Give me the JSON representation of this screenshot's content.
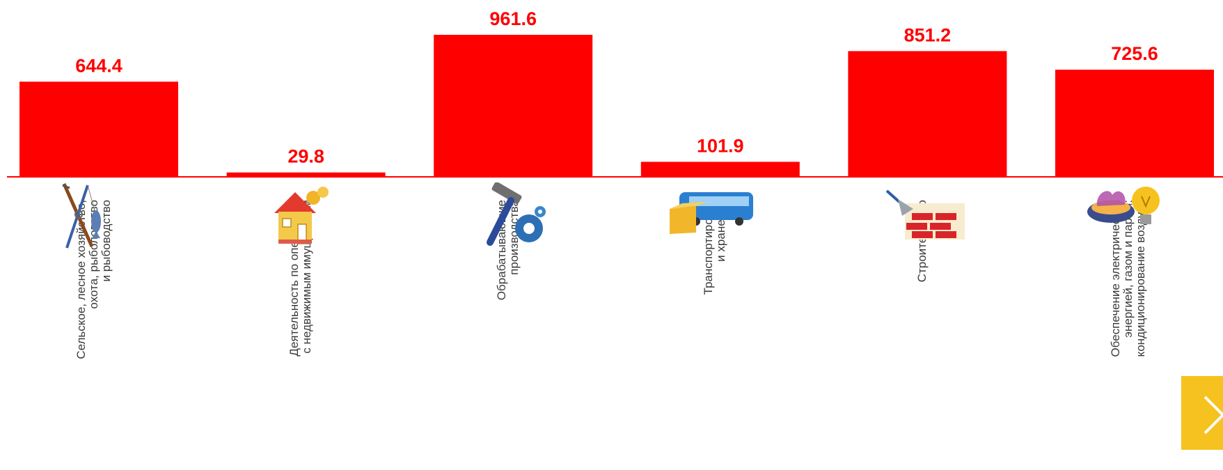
{
  "chart_data": {
    "type": "bar",
    "categories": [
      "Сельское, лесное хозяйство,\nохота, рыболовство\nи рыбоводство",
      "Деятельность по операциям\nс недвижимым имуществом",
      "Обрабатывающие\nпроизводства",
      "Транспортировка\nи хранение",
      "Строительство",
      "Обеспечение электрической\nэнергией, газом и паром;\nкондиционирование воздуха"
    ],
    "values": [
      644.4,
      29.8,
      961.6,
      101.9,
      851.2,
      725.6
    ],
    "value_labels": [
      "644.4",
      "29.8",
      "961.6",
      "101.9",
      "851.2",
      "725.6"
    ],
    "ylim": [
      0,
      961.6
    ],
    "bar_color": "#ff0000",
    "label_color": "#ff0000",
    "grid": false,
    "legend": "none"
  },
  "icons": [
    "fishing-rod-and-rifle-icon",
    "house-with-coins-icon",
    "hammer-and-gears-icon",
    "bus-and-box-icon",
    "trowel-and-brick-wall-icon",
    "gas-burner-and-light-bulb-icon"
  ],
  "next_button": {
    "icon": "chevron-right-icon",
    "color": "#f6c21f"
  }
}
